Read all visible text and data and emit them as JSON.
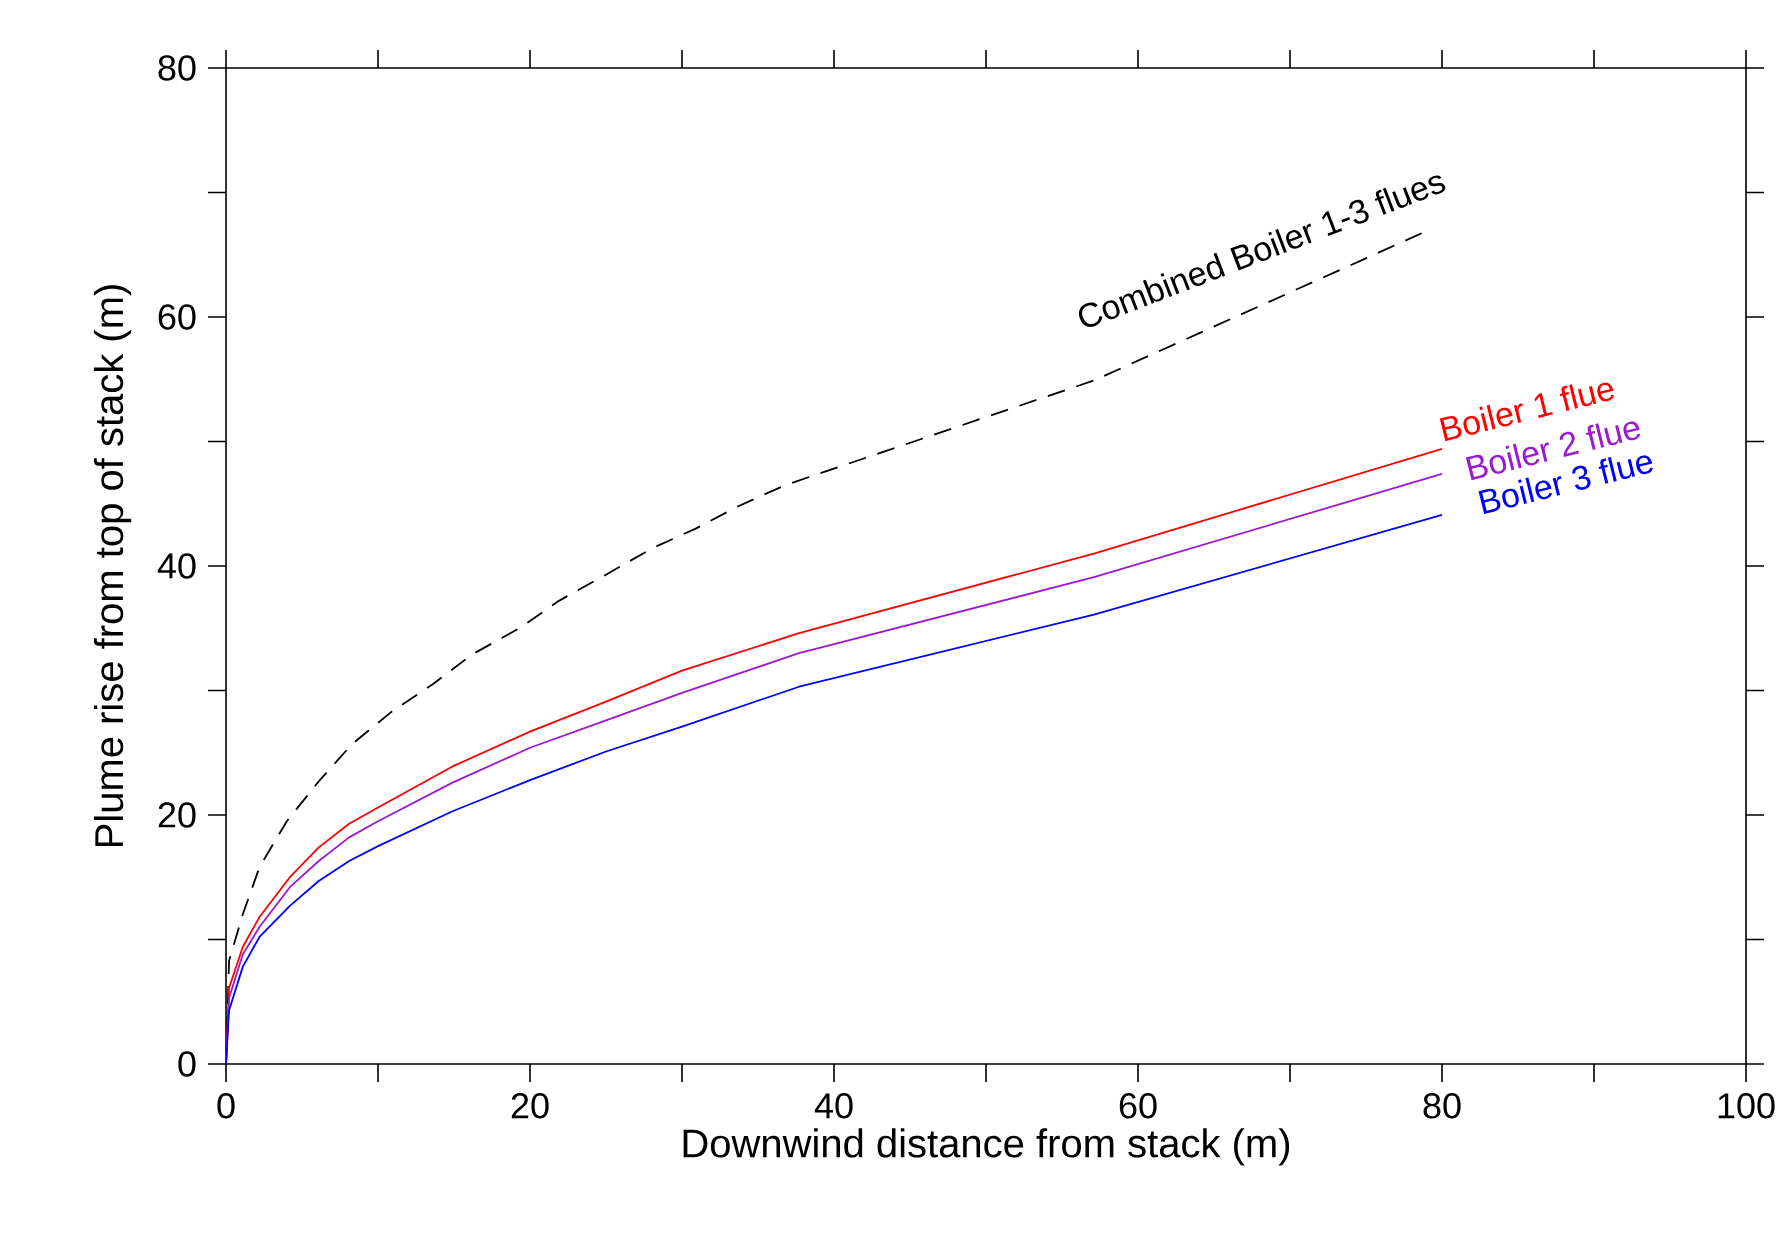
{
  "chart_data": {
    "type": "line",
    "xlabel": "Downwind distance from stack (m)",
    "ylabel": "Plume rise from top of stack (m)",
    "xlim": [
      0,
      100
    ],
    "ylim": [
      0,
      80
    ],
    "xticks": [
      0,
      20,
      40,
      60,
      80,
      100
    ],
    "yticks": [
      0,
      20,
      40,
      60,
      80
    ],
    "grid": false,
    "legend": false,
    "marker": "none",
    "series": [
      {
        "name": "Combined Boiler 1-3 flues",
        "color": "#000000",
        "line_style": "dashed",
        "x": [
          0,
          0.2,
          1.1,
          2.2,
          4,
          6.1,
          8.3,
          10.9,
          13.6,
          16.2,
          19.3,
          21.9,
          25,
          28,
          30.9,
          33.7,
          36.8,
          57.1,
          78.8
        ],
        "values": [
          0,
          8.3,
          12.0,
          15.8,
          19.5,
          22.7,
          25.7,
          28.3,
          30.5,
          32.9,
          35.0,
          37.2,
          39.3,
          41.4,
          43.0,
          44.8,
          46.5,
          54.9,
          66.8
        ]
      },
      {
        "name": "Boiler 1 flue",
        "color": "#ff0000",
        "line_style": "solid",
        "x": [
          0,
          0.2,
          1.1,
          2.2,
          4.2,
          6.1,
          8.1,
          10,
          14.9,
          20,
          25,
          30,
          37.7,
          57.1,
          80
        ],
        "values": [
          0,
          6.1,
          9.4,
          11.8,
          15.0,
          17.4,
          19.3,
          20.6,
          23.9,
          26.7,
          29.1,
          31.6,
          34.6,
          41.0,
          49.4
        ]
      },
      {
        "name": "Boiler 2 flue",
        "color": "#9a19d2",
        "line_style": "solid",
        "x": [
          0,
          0.2,
          1.1,
          2.2,
          4.2,
          6.1,
          8.1,
          10,
          14.9,
          20,
          25,
          30,
          37.7,
          57.1,
          80
        ],
        "values": [
          0,
          5.3,
          8.8,
          11.0,
          14.2,
          16.3,
          18.2,
          19.5,
          22.6,
          25.4,
          27.6,
          29.8,
          33.0,
          39.1,
          47.4
        ]
      },
      {
        "name": "Boiler 3 flue",
        "color": "#0000ff",
        "line_style": "solid",
        "x": [
          0,
          0.2,
          1.1,
          2.2,
          4.2,
          6.1,
          8.1,
          10,
          14.9,
          20,
          25,
          30,
          37.7,
          57.1,
          80
        ],
        "values": [
          0,
          4.3,
          7.8,
          10.2,
          12.7,
          14.7,
          16.3,
          17.5,
          20.3,
          22.8,
          25.1,
          27.1,
          30.3,
          36.1,
          44.1
        ]
      }
    ]
  }
}
